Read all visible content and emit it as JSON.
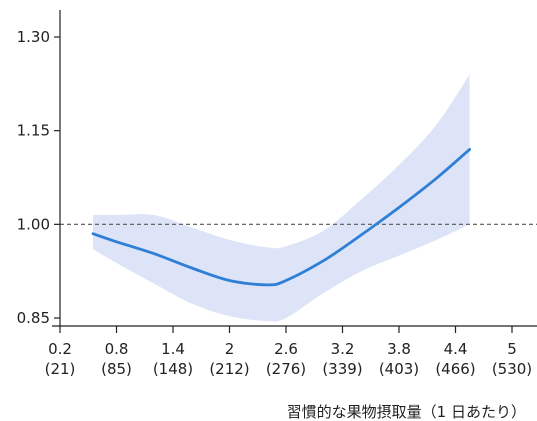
{
  "chart_data": {
    "type": "line",
    "title": "",
    "xlabel": "習慣的な果物摂取量（1 日あたり）",
    "ylabel": "",
    "xlim": [
      0.2,
      5.0
    ],
    "ylim": [
      0.85,
      1.3
    ],
    "x_ticks": [
      {
        "value": 0.2,
        "label": "0.2",
        "sublabel": "(21)"
      },
      {
        "value": 0.8,
        "label": "0.8",
        "sublabel": "(85)"
      },
      {
        "value": 1.4,
        "label": "1.4",
        "sublabel": "(148)"
      },
      {
        "value": 2.0,
        "label": "2",
        "sublabel": "(212)"
      },
      {
        "value": 2.6,
        "label": "2.6",
        "sublabel": "(276)"
      },
      {
        "value": 3.2,
        "label": "3.2",
        "sublabel": "(339)"
      },
      {
        "value": 3.8,
        "label": "3.8",
        "sublabel": "(403)"
      },
      {
        "value": 4.4,
        "label": "4.4",
        "sublabel": "(466)"
      },
      {
        "value": 5.0,
        "label": "5",
        "sublabel": "(530)"
      }
    ],
    "y_ticks": [
      {
        "value": 0.85,
        "label": "0.85"
      },
      {
        "value": 1.0,
        "label": "1.00"
      },
      {
        "value": 1.15,
        "label": "1.15"
      },
      {
        "value": 1.3,
        "label": "1.30"
      }
    ],
    "reference_line": {
      "y": 1.0,
      "style": "dashed"
    },
    "series": [
      {
        "x": [
          0.55,
          0.8,
          1.2,
          1.6,
          2.0,
          2.4,
          2.6,
          3.0,
          3.4,
          3.8,
          4.2,
          4.55
        ],
        "y": [
          0.985,
          0.972,
          0.953,
          0.93,
          0.91,
          0.903,
          0.91,
          0.942,
          0.983,
          1.027,
          1.074,
          1.12
        ],
        "lower": [
          0.96,
          0.938,
          0.905,
          0.873,
          0.853,
          0.845,
          0.85,
          0.89,
          0.925,
          0.95,
          0.975,
          1.0
        ],
        "upper": [
          1.015,
          1.015,
          1.015,
          0.995,
          0.975,
          0.963,
          0.965,
          0.99,
          1.04,
          1.095,
          1.16,
          1.24
        ]
      }
    ],
    "colors": {
      "line": "#2f7fd6",
      "band": "#dde4f7",
      "reference": "#555555",
      "axis": "#222222"
    },
    "grid": false,
    "legend": "none"
  }
}
